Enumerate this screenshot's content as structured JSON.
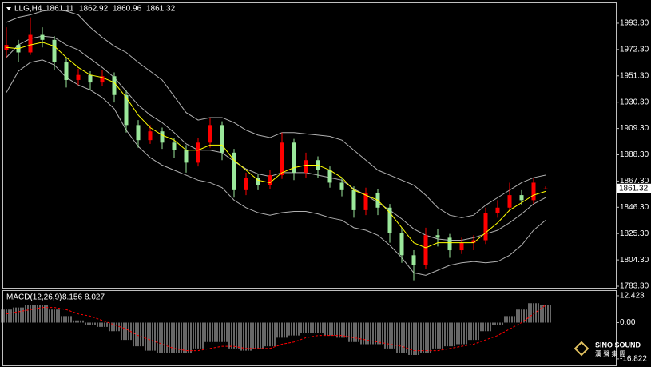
{
  "chart_data": [
    {
      "type": "candlestick",
      "title": "LLG,H4",
      "ohlc": [
        [
          1972,
          1990,
          1966,
          1976
        ],
        [
          1976,
          1980,
          1962,
          1970
        ],
        [
          1970,
          1998,
          1968,
          1984
        ],
        [
          1984,
          1990,
          1974,
          1980
        ],
        [
          1980,
          1983,
          1956,
          1962
        ],
        [
          1962,
          1966,
          1942,
          1948
        ],
        [
          1948,
          1957,
          1944,
          1952
        ],
        [
          1952,
          1955,
          1940,
          1946
        ],
        [
          1946,
          1956,
          1943,
          1951
        ],
        [
          1951,
          1954,
          1930,
          1936
        ],
        [
          1936,
          1940,
          1906,
          1912
        ],
        [
          1912,
          1916,
          1894,
          1900
        ],
        [
          1900,
          1912,
          1897,
          1907
        ],
        [
          1907,
          1910,
          1893,
          1898
        ],
        [
          1898,
          1902,
          1886,
          1892
        ],
        [
          1892,
          1896,
          1874,
          1882
        ],
        [
          1882,
          1902,
          1879,
          1898
        ],
        [
          1898,
          1918,
          1894,
          1912
        ],
        [
          1912,
          1915,
          1884,
          1890
        ],
        [
          1890,
          1893,
          1854,
          1860
        ],
        [
          1860,
          1874,
          1856,
          1870
        ],
        [
          1870,
          1873,
          1860,
          1864
        ],
        [
          1864,
          1876,
          1861,
          1872
        ],
        [
          1872,
          1906,
          1869,
          1898
        ],
        [
          1898,
          1901,
          1868,
          1874
        ],
        [
          1874,
          1890,
          1870,
          1884
        ],
        [
          1884,
          1887,
          1870,
          1876
        ],
        [
          1876,
          1879,
          1862,
          1866
        ],
        [
          1866,
          1870,
          1855,
          1860
        ],
        [
          1860,
          1863,
          1838,
          1844
        ],
        [
          1844,
          1862,
          1840,
          1858
        ],
        [
          1858,
          1861,
          1840,
          1846
        ],
        [
          1846,
          1849,
          1818,
          1826
        ],
        [
          1826,
          1830,
          1802,
          1808
        ],
        [
          1808,
          1812,
          1788,
          1800
        ],
        [
          1800,
          1830,
          1797,
          1824
        ],
        [
          1824,
          1829,
          1815,
          1822
        ],
        [
          1822,
          1825,
          1806,
          1812
        ],
        [
          1812,
          1822,
          1809,
          1818
        ],
        [
          1818,
          1824,
          1812,
          1820
        ],
        [
          1820,
          1846,
          1817,
          1842
        ],
        [
          1842,
          1852,
          1838,
          1846
        ],
        [
          1846,
          1866,
          1843,
          1856
        ],
        [
          1856,
          1860,
          1848,
          1852
        ],
        [
          1852,
          1870,
          1849,
          1866
        ],
        [
          1861.11,
          1862.92,
          1860.96,
          1861.32
        ]
      ],
      "up_color": "#ff0000",
      "down_color": "#9be89b",
      "bands": {
        "color": "#b0b0b0",
        "upper": [
          1994,
          1998,
          2000,
          2003,
          2004,
          2003,
          2000,
          1990,
          1982,
          1975,
          1970,
          1962,
          1955,
          1948,
          1935,
          1922,
          1916,
          1918,
          1918,
          1914,
          1908,
          1904,
          1902,
          1906,
          1906,
          1905,
          1904,
          1903,
          1900,
          1892,
          1884,
          1876,
          1872,
          1868,
          1864,
          1856,
          1846,
          1840,
          1838,
          1840,
          1848,
          1854,
          1860,
          1866,
          1870,
          1872
        ],
        "middle": [
          1966,
          1976,
          1981,
          1983,
          1982,
          1976,
          1972,
          1965,
          1958,
          1950,
          1939,
          1928,
          1920,
          1914,
          1906,
          1897,
          1892,
          1892,
          1890,
          1883,
          1877,
          1873,
          1871,
          1874,
          1874,
          1874,
          1872,
          1870,
          1868,
          1861,
          1856,
          1850,
          1844,
          1837,
          1829,
          1824,
          1821,
          1820,
          1820,
          1822,
          1825,
          1828,
          1834,
          1841,
          1849,
          1854
        ],
        "lower": [
          1938,
          1955,
          1962,
          1964,
          1960,
          1950,
          1944,
          1940,
          1934,
          1925,
          1908,
          1895,
          1886,
          1880,
          1876,
          1872,
          1868,
          1866,
          1862,
          1852,
          1846,
          1842,
          1840,
          1842,
          1843,
          1843,
          1841,
          1838,
          1836,
          1830,
          1828,
          1824,
          1816,
          1806,
          1794,
          1792,
          1796,
          1800,
          1802,
          1803,
          1802,
          1803,
          1808,
          1816,
          1828,
          1836
        ]
      },
      "ma": {
        "color": "#ffff00",
        "values": [
          1974,
          1973,
          1976,
          1978,
          1975,
          1966,
          1958,
          1952,
          1950,
          1946,
          1934,
          1920,
          1910,
          1904,
          1900,
          1892,
          1892,
          1896,
          1896,
          1884,
          1876,
          1868,
          1866,
          1874,
          1878,
          1880,
          1880,
          1876,
          1870,
          1860,
          1856,
          1852,
          1842,
          1830,
          1818,
          1814,
          1818,
          1818,
          1818,
          1818,
          1826,
          1834,
          1844,
          1850,
          1856,
          1859
        ]
      },
      "ylim": [
        1781.4,
        2008.6
      ],
      "yticks": [
        {
          "value": 1993.3,
          "label": "1993.30"
        },
        {
          "value": 1972.3,
          "label": "1972.30"
        },
        {
          "value": 1951.3,
          "label": "1951.30"
        },
        {
          "value": 1930.3,
          "label": "1930.30"
        },
        {
          "value": 1909.3,
          "label": "1909.30"
        },
        {
          "value": 1888.3,
          "label": "1888.30"
        },
        {
          "value": 1867.3,
          "label": "1867.30"
        },
        {
          "value": 1846.3,
          "label": "1846.30"
        },
        {
          "value": 1825.3,
          "label": "1825.30"
        },
        {
          "value": 1804.3,
          "label": "1804.30"
        },
        {
          "value": 1783.3,
          "label": "1783.30"
        }
      ],
      "grid": false
    },
    {
      "type": "macd",
      "title": "MACD(12,26,9)",
      "histogram": {
        "color": "#d0d0d0",
        "values": [
          6,
          7,
          8,
          8,
          6,
          3,
          1,
          -1,
          -2,
          -4,
          -8,
          -11,
          -13,
          -14,
          -14,
          -14,
          -12,
          -9,
          -9,
          -12,
          -13,
          -12,
          -11,
          -7,
          -6,
          -5,
          -5,
          -6,
          -7,
          -9,
          -10,
          -10,
          -12,
          -14,
          -15,
          -14,
          -12,
          -11,
          -10,
          -8,
          -4,
          -1,
          3,
          6,
          9,
          8.156
        ]
      },
      "signal": {
        "color": "#ff0000",
        "values": [
          4,
          5,
          6,
          7,
          7,
          6,
          4,
          3,
          1,
          -1,
          -3,
          -6,
          -8,
          -10,
          -12,
          -13,
          -13,
          -12,
          -11,
          -11,
          -12,
          -12,
          -12,
          -10,
          -9,
          -7,
          -6,
          -6,
          -6,
          -7,
          -8,
          -9,
          -10,
          -11,
          -13,
          -13,
          -13,
          -12,
          -11,
          -10,
          -8,
          -6,
          -3,
          0,
          4,
          8.027
        ]
      },
      "ylim": [
        -20.2,
        15.0
      ],
      "yticks": [
        12.423,
        {
          "value": 0,
          "label": "0.00"
        },
        -16.822
      ],
      "grid": false
    }
  ],
  "watermark": {
    "brand": "SINO SOUND",
    "sub": "漢 聲 集 團"
  }
}
